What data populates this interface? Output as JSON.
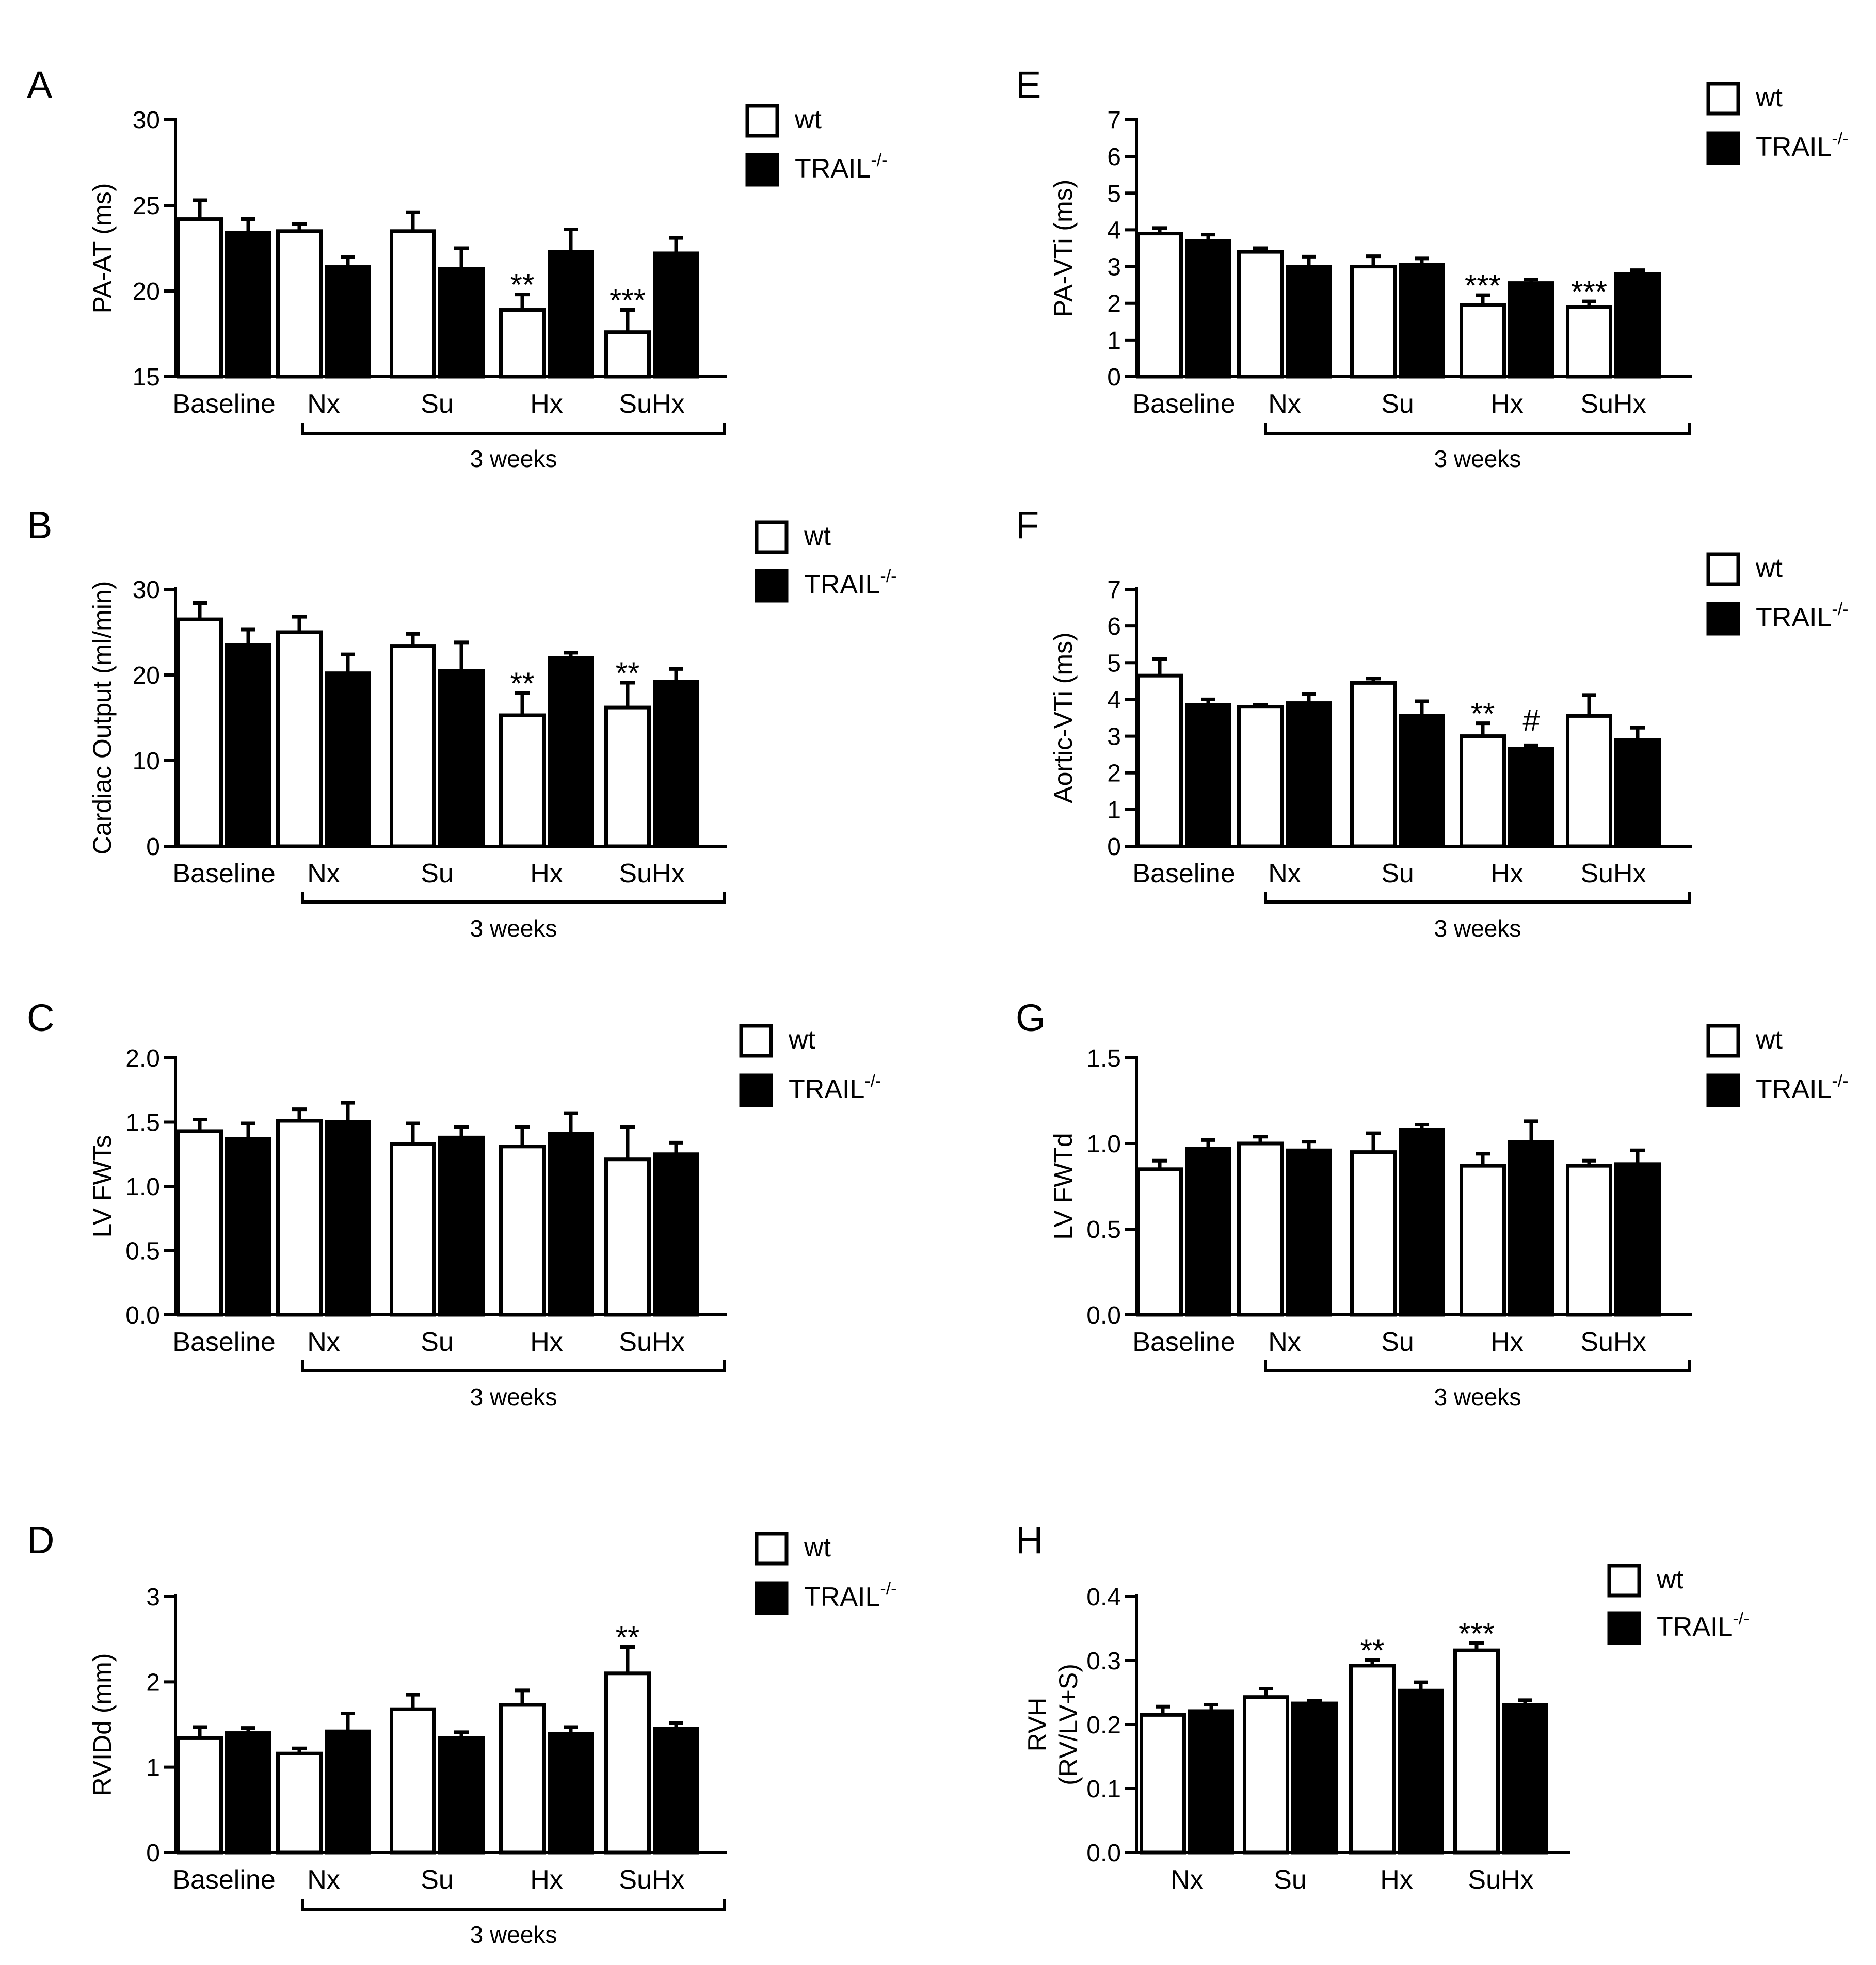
{
  "figure": {
    "legend": {
      "wt_label": "wt",
      "ko_label": "TRAIL",
      "ko_sup": "-/-"
    },
    "colors": {
      "wt_fill": "#ffffff",
      "ko_fill": "#000000",
      "stroke": "#000000"
    }
  },
  "chart_data": [
    {
      "id": "A",
      "letter": "A",
      "type": "bar",
      "ylabel": "PA-AT (ms)",
      "ylim": [
        15,
        30
      ],
      "yticks": [
        15,
        20,
        25,
        30
      ],
      "tick_decimals": 0,
      "categories": [
        "Baseline",
        "Nx",
        "Su",
        "Hx",
        "SuHx"
      ],
      "series": [
        {
          "name": "wt",
          "values": [
            24.2,
            23.5,
            23.5,
            18.9,
            17.6
          ],
          "errors": [
            1.1,
            0.4,
            1.1,
            0.9,
            1.3
          ]
        },
        {
          "name": "TRAIL-/-",
          "values": [
            23.4,
            21.4,
            21.3,
            22.3,
            22.2
          ],
          "errors": [
            0.8,
            0.6,
            1.2,
            1.3,
            0.9
          ]
        }
      ],
      "annotations": [
        {
          "category": 3,
          "series": 0,
          "text": "**"
        },
        {
          "category": 4,
          "series": 0,
          "text": "***"
        }
      ],
      "bracket": {
        "label": "3 weeks",
        "from": 1,
        "to": 4
      }
    },
    {
      "id": "B",
      "letter": "B",
      "type": "bar",
      "ylabel": "Cardiac Output (ml/min)",
      "ylim": [
        0,
        30
      ],
      "yticks": [
        0,
        10,
        20,
        30
      ],
      "tick_decimals": 0,
      "categories": [
        "Baseline",
        "Nx",
        "Su",
        "Hx",
        "SuHx"
      ],
      "series": [
        {
          "name": "wt",
          "values": [
            26.5,
            25.0,
            23.4,
            15.3,
            16.2
          ],
          "errors": [
            1.9,
            1.8,
            1.4,
            2.6,
            2.9
          ]
        },
        {
          "name": "TRAIL-/-",
          "values": [
            23.5,
            20.2,
            20.5,
            22.0,
            19.2
          ],
          "errors": [
            1.8,
            2.2,
            3.3,
            0.6,
            1.5
          ]
        }
      ],
      "annotations": [
        {
          "category": 3,
          "series": 0,
          "text": "**"
        },
        {
          "category": 4,
          "series": 0,
          "text": "**"
        }
      ],
      "bracket": {
        "label": "3 weeks",
        "from": 1,
        "to": 4
      }
    },
    {
      "id": "C",
      "letter": "C",
      "type": "bar",
      "ylabel": "LV FWTs",
      "ylim": [
        0,
        2
      ],
      "yticks": [
        0,
        0.5,
        1,
        1.5,
        2
      ],
      "tick_decimals": 1,
      "categories": [
        "Baseline",
        "Nx",
        "Su",
        "Hx",
        "SuHx"
      ],
      "series": [
        {
          "name": "wt",
          "values": [
            1.43,
            1.51,
            1.33,
            1.31,
            1.21
          ],
          "errors": [
            0.09,
            0.09,
            0.16,
            0.15,
            0.25
          ]
        },
        {
          "name": "TRAIL-/-",
          "values": [
            1.37,
            1.5,
            1.38,
            1.41,
            1.25
          ],
          "errors": [
            0.12,
            0.15,
            0.08,
            0.16,
            0.09
          ]
        }
      ],
      "annotations": [],
      "bracket": {
        "label": "3 weeks",
        "from": 1,
        "to": 4
      }
    },
    {
      "id": "D",
      "letter": "D",
      "type": "bar",
      "ylabel": "RVIDd (mm)",
      "ylim": [
        0,
        3
      ],
      "yticks": [
        0,
        1,
        2,
        3
      ],
      "tick_decimals": 0,
      "categories": [
        "Baseline",
        "Nx",
        "Su",
        "Hx",
        "SuHx"
      ],
      "series": [
        {
          "name": "wt",
          "values": [
            1.34,
            1.16,
            1.68,
            1.73,
            2.1
          ],
          "errors": [
            0.13,
            0.06,
            0.17,
            0.17,
            0.31
          ]
        },
        {
          "name": "TRAIL-/-",
          "values": [
            1.4,
            1.42,
            1.34,
            1.39,
            1.45
          ],
          "errors": [
            0.06,
            0.21,
            0.07,
            0.08,
            0.07
          ]
        }
      ],
      "annotations": [
        {
          "category": 4,
          "series": 0,
          "text": "**"
        }
      ],
      "bracket": {
        "label": "3 weeks",
        "from": 1,
        "to": 4
      }
    },
    {
      "id": "E",
      "letter": "E",
      "type": "bar",
      "ylabel": "PA-VTi (ms)",
      "ylim": [
        0,
        7
      ],
      "yticks": [
        0,
        1,
        2,
        3,
        4,
        5,
        6,
        7
      ],
      "tick_decimals": 0,
      "categories": [
        "Baseline",
        "Nx",
        "Su",
        "Hx",
        "SuHx"
      ],
      "series": [
        {
          "name": "wt",
          "values": [
            3.9,
            3.4,
            3.0,
            1.95,
            1.9
          ],
          "errors": [
            0.15,
            0.1,
            0.28,
            0.27,
            0.15
          ]
        },
        {
          "name": "TRAIL-/-",
          "values": [
            3.7,
            3.0,
            3.05,
            2.55,
            2.8
          ],
          "errors": [
            0.17,
            0.27,
            0.17,
            0.1,
            0.1
          ]
        }
      ],
      "annotations": [
        {
          "category": 3,
          "series": 0,
          "text": "***"
        },
        {
          "category": 4,
          "series": 0,
          "text": "***"
        }
      ],
      "bracket": {
        "label": "3 weeks",
        "from": 1,
        "to": 4
      }
    },
    {
      "id": "F",
      "letter": "F",
      "type": "bar",
      "ylabel": "Aortic-VTi (ms)",
      "ylim": [
        0,
        7
      ],
      "yticks": [
        0,
        1,
        2,
        3,
        4,
        5,
        6,
        7
      ],
      "tick_decimals": 0,
      "categories": [
        "Baseline",
        "Nx",
        "Su",
        "Hx",
        "SuHx"
      ],
      "series": [
        {
          "name": "wt",
          "values": [
            4.65,
            3.8,
            4.45,
            3.0,
            3.55
          ],
          "errors": [
            0.45,
            0.05,
            0.12,
            0.35,
            0.57
          ]
        },
        {
          "name": "TRAIL-/-",
          "values": [
            3.85,
            3.9,
            3.55,
            2.65,
            2.9
          ],
          "errors": [
            0.15,
            0.25,
            0.4,
            0.1,
            0.33
          ]
        }
      ],
      "annotations": [
        {
          "category": 3,
          "series": 0,
          "text": "**"
        },
        {
          "category": 3,
          "series": 1,
          "text": "#"
        }
      ],
      "bracket": {
        "label": "3 weeks",
        "from": 1,
        "to": 4
      }
    },
    {
      "id": "G",
      "letter": "G",
      "type": "bar",
      "ylabel": "LV FWTd",
      "ylim": [
        0,
        1.5
      ],
      "yticks": [
        0,
        0.5,
        1,
        1.5
      ],
      "tick_decimals": 1,
      "categories": [
        "Baseline",
        "Nx",
        "Su",
        "Hx",
        "SuHx"
      ],
      "series": [
        {
          "name": "wt",
          "values": [
            0.85,
            1.0,
            0.95,
            0.87,
            0.87
          ],
          "errors": [
            0.05,
            0.04,
            0.11,
            0.07,
            0.03
          ]
        },
        {
          "name": "TRAIL-/-",
          "values": [
            0.97,
            0.96,
            1.08,
            1.01,
            0.88
          ],
          "errors": [
            0.05,
            0.05,
            0.03,
            0.12,
            0.08
          ]
        }
      ],
      "annotations": [],
      "bracket": {
        "label": "3 weeks",
        "from": 1,
        "to": 4
      }
    },
    {
      "id": "H",
      "letter": "H",
      "type": "bar",
      "ylabel": "RVH",
      "ylabel2": "(RV/LV+S)",
      "ylim": [
        0,
        0.4
      ],
      "yticks": [
        0,
        0.1,
        0.2,
        0.3,
        0.4
      ],
      "tick_decimals": 1,
      "categories": [
        "Nx",
        "Su",
        "Hx",
        "SuHx"
      ],
      "series": [
        {
          "name": "wt",
          "values": [
            0.215,
            0.243,
            0.292,
            0.316
          ],
          "errors": [
            0.013,
            0.013,
            0.009,
            0.011
          ]
        },
        {
          "name": "TRAIL-/-",
          "values": [
            0.221,
            0.233,
            0.253,
            0.231
          ],
          "errors": [
            0.01,
            0.004,
            0.013,
            0.007
          ]
        }
      ],
      "annotations": [
        {
          "category": 2,
          "series": 0,
          "text": "**"
        },
        {
          "category": 3,
          "series": 0,
          "text": "***"
        }
      ],
      "bracket": null
    }
  ]
}
